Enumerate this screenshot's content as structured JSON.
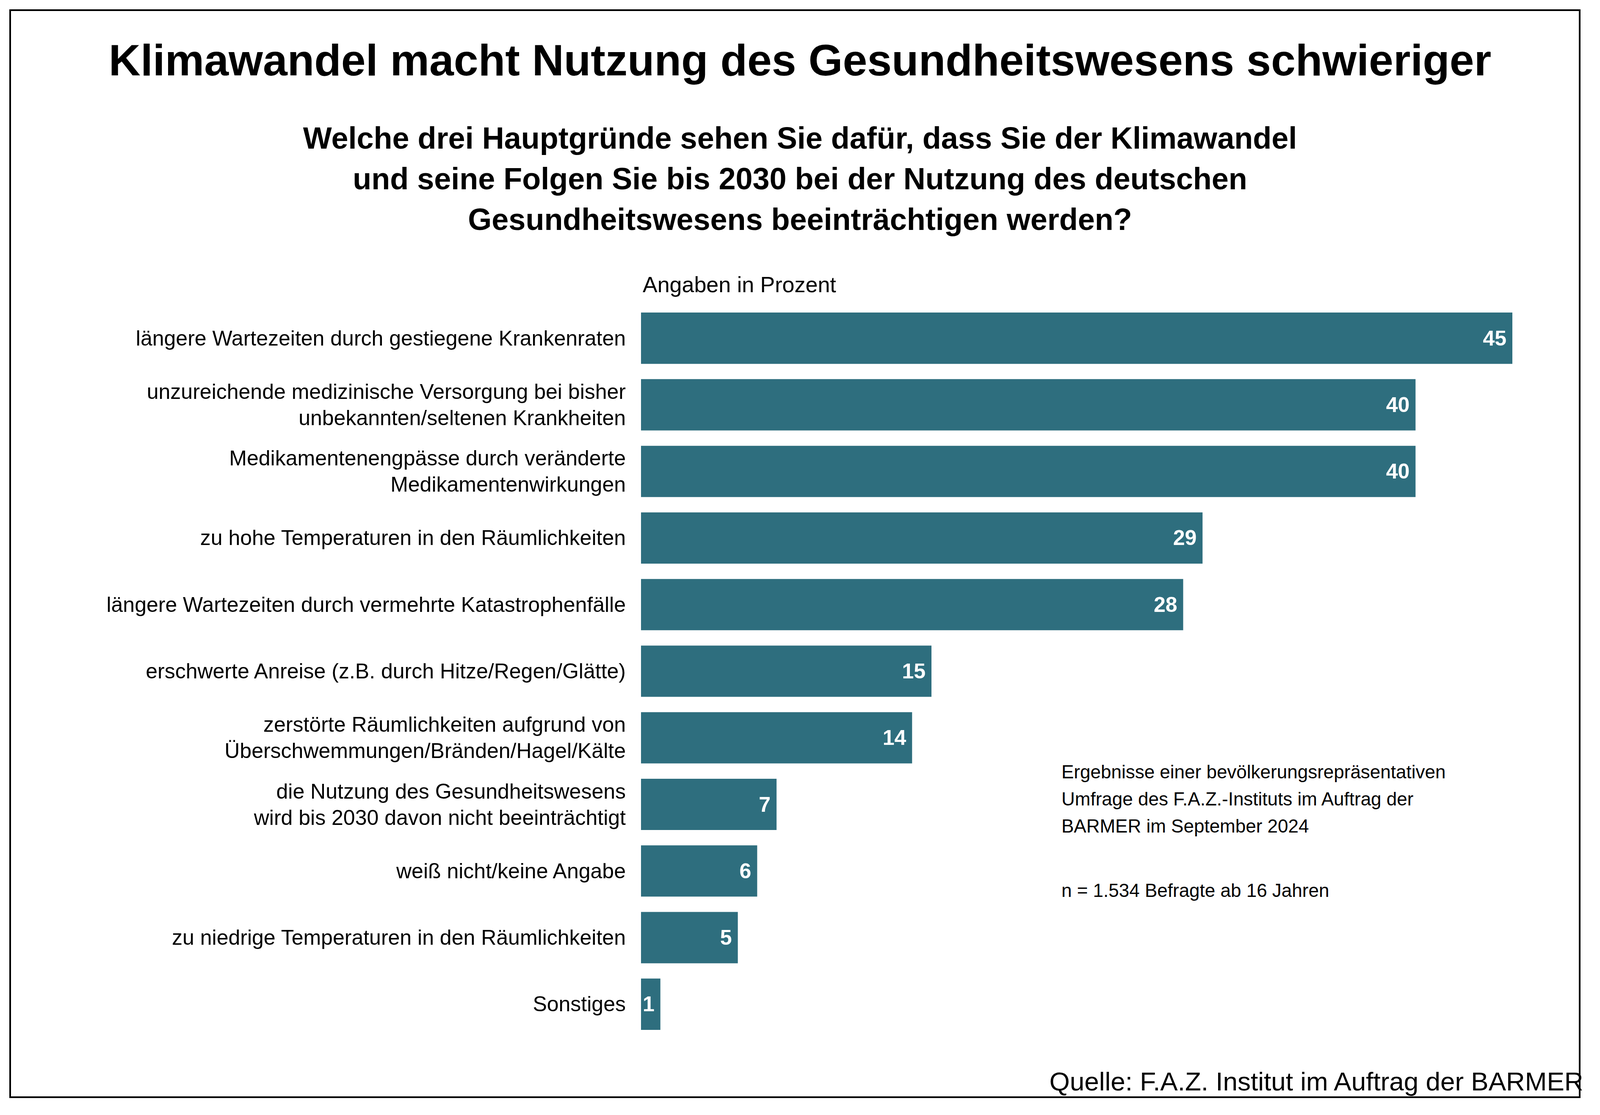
{
  "chart_data": {
    "type": "bar",
    "orientation": "horizontal",
    "title": "Klimawandel macht Nutzung des Gesundheitswesens schwieriger",
    "subtitle": "Welche drei Hauptgründe sehen Sie dafür, dass Sie der Klimawandel\nund seine Folgen Sie bis 2030 bei der Nutzung des deutschen\nGesundheitswesens beeinträchtigen werden?",
    "unit_label": "Angaben in Prozent",
    "categories": [
      "längere Wartezeiten durch gestiegene Krankenraten",
      "unzureichende medizinische Versorgung bei bisher\nunbekannten/seltenen Krankheiten",
      "Medikamentenengpässe durch veränderte\nMedikamentenwirkungen",
      "zu hohe Temperaturen in den Räumlichkeiten",
      "längere Wartezeiten durch vermehrte Katastrophenfälle",
      "erschwerte Anreise (z.B. durch Hitze/Regen/Glätte)",
      "zerstörte Räumlichkeiten aufgrund von\nÜberschwemmungen/Bränden/Hagel/Kälte",
      "die Nutzung des Gesundheitswesens\nwird bis 2030 davon nicht beeinträchtigt",
      "weiß nicht/keine Angabe",
      "zu niedrige Temperaturen in den Räumlichkeiten",
      "Sonstiges"
    ],
    "values": [
      45,
      40,
      40,
      29,
      28,
      15,
      14,
      7,
      6,
      5,
      1
    ],
    "color": "#2e6e7e",
    "xlim": [
      0,
      45
    ],
    "tick_labels": "y",
    "grid": false,
    "data_labels": true,
    "annotations": [
      "Ergebnisse einer bevölkerungsrepräsentativen\nUmfrage des F.A.Z.-Instituts im Auftrag der\nBARMER im September 2024",
      "n = 1.534 Befragte ab 16 Jahren"
    ],
    "source": "Quelle: F.A.Z. Institut im Auftrag der BARMER"
  }
}
